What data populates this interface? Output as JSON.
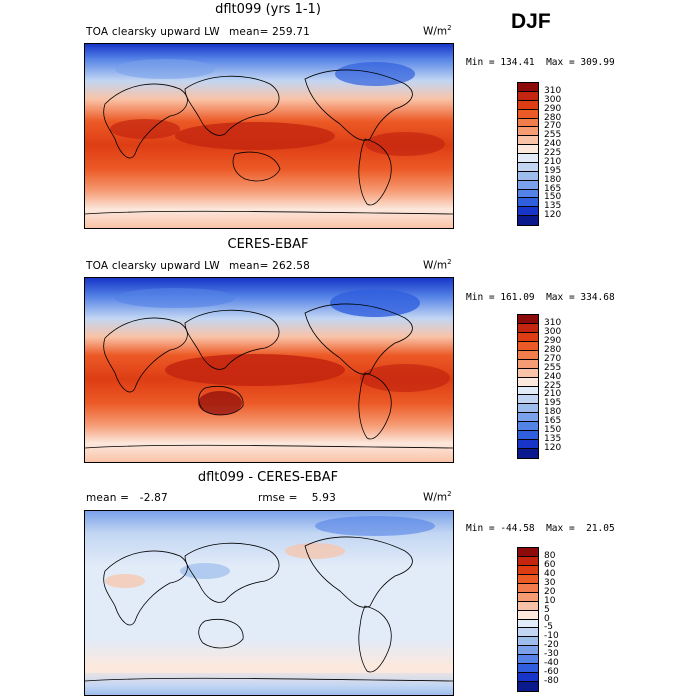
{
  "season": "DJF",
  "panels": [
    {
      "title": "dflt099 (yrs 1-1)",
      "variable": "TOA clearsky upward LW",
      "stat1": "mean=  259.71",
      "stat2": "",
      "units": "W/m",
      "units_sup": "2",
      "minmax": "Min = 134.41  Max = 309.99",
      "colorbar": {
        "levels": [
          "310",
          "300",
          "290",
          "280",
          "270",
          "255",
          "240",
          "225",
          "210",
          "195",
          "180",
          "165",
          "150",
          "135",
          "120"
        ],
        "colors": [
          "#8c0a0a",
          "#c3250f",
          "#de3d14",
          "#ec5a26",
          "#f27c4b",
          "#f69c75",
          "#f9c3a7",
          "#fce8dd",
          "#e2ebf8",
          "#c2d6f3",
          "#9dbded",
          "#7aa1e9",
          "#5482e6",
          "#2f5fdd",
          "#1735c8",
          "#0a1a8c"
        ]
      }
    },
    {
      "title": "CERES-EBAF",
      "variable": "TOA clearsky upward LW",
      "stat1": "mean=  262.58",
      "stat2": "",
      "units": "W/m",
      "units_sup": "2",
      "minmax": "Min = 161.09  Max = 334.68",
      "colorbar": {
        "levels": [
          "310",
          "300",
          "290",
          "280",
          "270",
          "255",
          "240",
          "225",
          "210",
          "195",
          "180",
          "165",
          "150",
          "135",
          "120"
        ],
        "colors": [
          "#8c0a0a",
          "#c3250f",
          "#de3d14",
          "#ec5a26",
          "#f27c4b",
          "#f69c75",
          "#f9c3a7",
          "#fce8dd",
          "#e2ebf8",
          "#c2d6f3",
          "#9dbded",
          "#7aa1e9",
          "#5482e6",
          "#2f5fdd",
          "#1735c8",
          "#0a1a8c"
        ]
      }
    },
    {
      "title": "dflt099 - CERES-EBAF",
      "variable": "",
      "stat1": "mean =   -2.87",
      "stat2": "rmse =    5.93",
      "units": "W/m",
      "units_sup": "2",
      "minmax": "Min = -44.58  Max =  21.05",
      "colorbar": {
        "levels": [
          "80",
          "60",
          "40",
          "30",
          "20",
          "10",
          "5",
          "0",
          "-5",
          "-10",
          "-20",
          "-30",
          "-40",
          "-60",
          "-80"
        ],
        "colors": [
          "#8c0a0a",
          "#c3250f",
          "#de3d14",
          "#ec5a26",
          "#f27c4b",
          "#f69c75",
          "#f9c3a7",
          "#fce8dd",
          "#e2ebf8",
          "#c2d6f3",
          "#9dbded",
          "#7aa1e9",
          "#5482e6",
          "#2f5fdd",
          "#1735c8",
          "#0a1a8c"
        ]
      }
    }
  ]
}
